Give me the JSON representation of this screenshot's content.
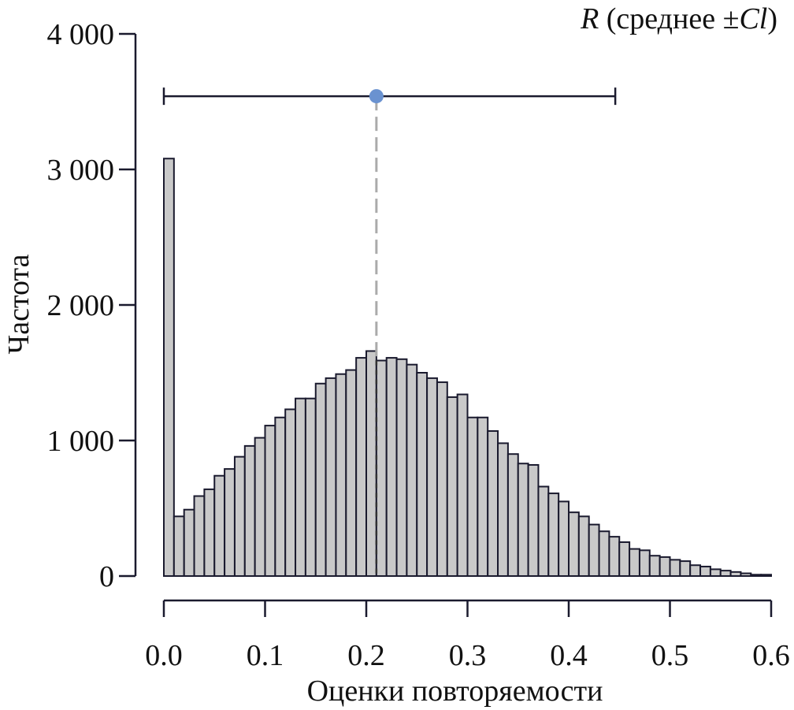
{
  "chart_data": {
    "type": "bar",
    "title": "",
    "xlabel": "Оценки повторяемости",
    "ylabel": "Частота",
    "xlim": [
      0.0,
      0.6
    ],
    "ylim": [
      0,
      4000
    ],
    "grid": false,
    "bin_width": 0.01,
    "x_ticks": [
      0.0,
      0.1,
      0.2,
      0.3,
      0.4,
      0.5,
      0.6
    ],
    "x_tick_labels": [
      "0.0",
      "0.1",
      "0.2",
      "0.3",
      "0.4",
      "0.5",
      "0.6"
    ],
    "y_ticks": [
      0,
      1000,
      2000,
      3000,
      4000
    ],
    "y_tick_labels": [
      "0",
      "1 000",
      "2 000",
      "3 000",
      "4 000"
    ],
    "bin_starts": [
      0.0,
      0.01,
      0.02,
      0.03,
      0.04,
      0.05,
      0.06,
      0.07,
      0.08,
      0.09,
      0.1,
      0.11,
      0.12,
      0.13,
      0.14,
      0.15,
      0.16,
      0.17,
      0.18,
      0.19,
      0.2,
      0.21,
      0.22,
      0.23,
      0.24,
      0.25,
      0.26,
      0.27,
      0.28,
      0.29,
      0.3,
      0.31,
      0.32,
      0.33,
      0.34,
      0.35,
      0.36,
      0.37,
      0.38,
      0.39,
      0.4,
      0.41,
      0.42,
      0.43,
      0.44,
      0.45,
      0.46,
      0.47,
      0.48,
      0.49,
      0.5,
      0.51,
      0.52,
      0.53,
      0.54,
      0.55,
      0.56,
      0.57,
      0.58,
      0.59
    ],
    "values": [
      3080,
      440,
      490,
      590,
      640,
      740,
      790,
      880,
      960,
      1020,
      1110,
      1170,
      1230,
      1310,
      1310,
      1420,
      1460,
      1490,
      1520,
      1610,
      1660,
      1590,
      1610,
      1600,
      1560,
      1500,
      1460,
      1430,
      1320,
      1340,
      1170,
      1170,
      1070,
      980,
      900,
      830,
      820,
      660,
      610,
      550,
      470,
      440,
      380,
      330,
      290,
      250,
      200,
      190,
      150,
      140,
      120,
      110,
      80,
      70,
      50,
      40,
      30,
      20,
      10,
      10
    ],
    "summary": {
      "mean": 0.21,
      "ci_lower": 0.0,
      "ci_upper": 0.446,
      "display_y": 3540,
      "point_color": "#6a92d0"
    },
    "legend": {
      "position": "top-right",
      "label_symbol": "R",
      "label_text": " (среднее ±",
      "label_ci": "Cl",
      "label_close": ")"
    },
    "colors": {
      "bar_fill": "#c9c9c9",
      "bar_edge": "#1a1a2e",
      "axis": "#1a1a2e",
      "mean_line": "#aaaaaa"
    }
  }
}
